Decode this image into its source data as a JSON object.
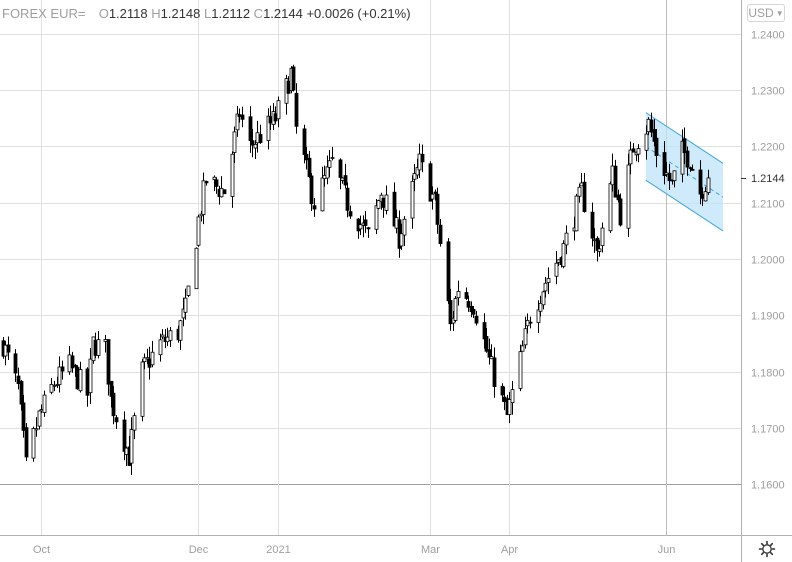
{
  "legend": {
    "symbol": "FOREX EUR=",
    "open_label": "O",
    "open": "1.2118",
    "high_label": "H",
    "high": "1.2148",
    "low_label": "L",
    "low": "1.2112",
    "close_label": "C",
    "close": "1.2144",
    "change": "+0.0026 (+0.21%)"
  },
  "currency_selector": {
    "value": "USD",
    "icon": "chevron-down-icon"
  },
  "settings": {
    "icon": "gear-icon"
  },
  "colors": {
    "grid": "#e0e0e0",
    "axis": "#b2b2b2",
    "candle_up": "#ffffff",
    "candle_down": "#000000",
    "channel_fill": "#bfe3f8",
    "channel_line": "#42a5e0"
  },
  "chart_data": {
    "type": "candlestick",
    "ylim": [
      1.151,
      1.246
    ],
    "yticks": [
      "1.2400",
      "1.2300",
      "1.2200",
      "1.2100",
      "1.2000",
      "1.1900",
      "1.1800",
      "1.1700",
      "1.1600"
    ],
    "xticks": [
      {
        "label": "Oct",
        "date": "2020-10-01"
      },
      {
        "label": "Dec",
        "date": "2020-12-01"
      },
      {
        "label": "2021",
        "date": "2021-01-01"
      },
      {
        "label": "Mar",
        "date": "2021-03-01"
      },
      {
        "label": "Apr",
        "date": "2021-04-01"
      },
      {
        "label": "Jun",
        "date": "2021-06-01"
      }
    ],
    "x_range": [
      "2020-09-15",
      "2021-06-30"
    ],
    "last_price": "1.2144",
    "grid": true,
    "close_path": [
      [
        "2020-09-16",
        1.185
      ],
      [
        "2020-09-22",
        1.177
      ],
      [
        "2020-09-25",
        1.163
      ],
      [
        "2020-09-30",
        1.172
      ],
      [
        "2020-10-06",
        1.178
      ],
      [
        "2020-10-12",
        1.181
      ],
      [
        "2020-10-19",
        1.176
      ],
      [
        "2020-10-21",
        1.185
      ],
      [
        "2020-10-26",
        1.184
      ],
      [
        "2020-10-28",
        1.175
      ],
      [
        "2020-11-04",
        1.165
      ],
      [
        "2020-11-09",
        1.18
      ],
      [
        "2020-11-16",
        1.185
      ],
      [
        "2020-11-23",
        1.187
      ],
      [
        "2020-11-26",
        1.191
      ],
      [
        "2020-12-01",
        1.207
      ],
      [
        "2020-12-04",
        1.214
      ],
      [
        "2020-12-11",
        1.212
      ],
      [
        "2020-12-17",
        1.226
      ],
      [
        "2020-12-21",
        1.22
      ],
      [
        "2020-12-31",
        1.225
      ],
      [
        "2021-01-06",
        1.233
      ],
      [
        "2021-01-08",
        1.223
      ],
      [
        "2021-01-15",
        1.21
      ],
      [
        "2021-01-22",
        1.217
      ],
      [
        "2021-01-28",
        1.21
      ],
      [
        "2021-02-05",
        1.204
      ],
      [
        "2021-02-10",
        1.212
      ],
      [
        "2021-02-17",
        1.204
      ],
      [
        "2021-02-25",
        1.217
      ],
      [
        "2021-03-03",
        1.21
      ],
      [
        "2021-03-09",
        1.188
      ],
      [
        "2021-03-12",
        1.195
      ],
      [
        "2021-03-18",
        1.192
      ],
      [
        "2021-03-24",
        1.182
      ],
      [
        "2021-03-31",
        1.172
      ],
      [
        "2021-04-05",
        1.182
      ],
      [
        "2021-04-09",
        1.19
      ],
      [
        "2021-04-15",
        1.196
      ],
      [
        "2021-04-22",
        1.202
      ],
      [
        "2021-04-29",
        1.212
      ],
      [
        "2021-05-05",
        1.201
      ],
      [
        "2021-05-11",
        1.215
      ],
      [
        "2021-05-14",
        1.208
      ],
      [
        "2021-05-19",
        1.22
      ],
      [
        "2021-05-25",
        1.224
      ],
      [
        "2021-05-28",
        1.219
      ],
      [
        "2021-06-03",
        1.213
      ],
      [
        "2021-06-07",
        1.219
      ],
      [
        "2021-06-10",
        1.218
      ],
      [
        "2021-06-14",
        1.212
      ],
      [
        "2021-06-17",
        1.2144
      ]
    ],
    "channel": {
      "start_date": "2021-05-24",
      "end_date": "2021-06-23",
      "upper": [
        1.226,
        1.217
      ],
      "middle": [
        1.22,
        1.211
      ],
      "lower": [
        1.214,
        1.205
      ]
    }
  }
}
